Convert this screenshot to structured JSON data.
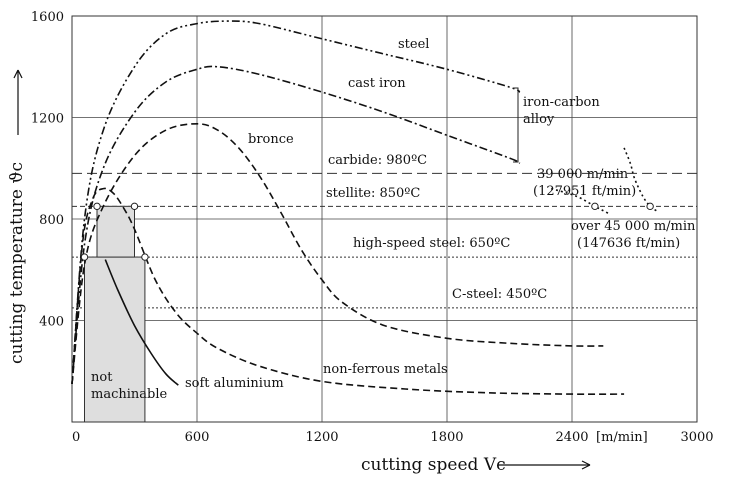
{
  "chart_data": {
    "type": "line",
    "xlabel": "cutting speed Vc",
    "x_unit_label": "[m/min]",
    "ylabel": "cutting temperature ϑc",
    "xlim": [
      0,
      3000
    ],
    "ylim": [
      0,
      1600
    ],
    "x_ticks": [
      0,
      600,
      1200,
      1800,
      2400,
      3000
    ],
    "x_tick_labels": [
      "0",
      "600",
      "1200",
      "1800",
      "2400",
      "3000"
    ],
    "y_ticks": [
      400,
      800,
      1200,
      1600
    ],
    "y_tick_labels": [
      "400",
      "800",
      "1200",
      "1600"
    ],
    "grid": true,
    "series": [
      {
        "name": "steel",
        "style": "dashdotdot",
        "x": [
          0,
          60,
          150,
          300,
          450,
          600,
          750,
          900,
          1200,
          1500,
          1800,
          2100,
          2150
        ],
        "y": [
          150,
          800,
          1150,
          1400,
          1530,
          1570,
          1580,
          1570,
          1510,
          1450,
          1390,
          1320,
          1300
        ]
      },
      {
        "name": "cast iron",
        "style": "dashdot",
        "x": [
          0,
          60,
          150,
          300,
          450,
          600,
          700,
          900,
          1200,
          1500,
          1800,
          2100,
          2150
        ],
        "y": [
          150,
          700,
          1000,
          1220,
          1340,
          1390,
          1400,
          1370,
          1300,
          1220,
          1130,
          1040,
          1020
        ]
      },
      {
        "name": "bronce",
        "style": "dashed",
        "x": [
          0,
          60,
          150,
          300,
          450,
          600,
          700,
          800,
          900,
          1000,
          1100,
          1200,
          1300,
          1500,
          1800,
          2100,
          2400,
          2550
        ],
        "y": [
          150,
          620,
          850,
          1050,
          1150,
          1175,
          1150,
          1080,
          970,
          830,
          680,
          560,
          470,
          380,
          330,
          310,
          300,
          300
        ]
      },
      {
        "name": "non-ferrous metals",
        "style": "dashed",
        "x": [
          0,
          50,
          100,
          150,
          200,
          250,
          300,
          400,
          500,
          600,
          700,
          900,
          1200,
          1600,
          2000,
          2400,
          2650
        ],
        "y": [
          150,
          700,
          880,
          920,
          900,
          840,
          760,
          560,
          430,
          350,
          290,
          220,
          160,
          130,
          115,
          110,
          110
        ]
      },
      {
        "name": "soft aluminium",
        "style": "solid",
        "x": [
          160,
          220,
          300,
          380,
          450,
          510
        ],
        "y": [
          640,
          520,
          380,
          270,
          190,
          145
        ]
      }
    ],
    "reference_lines": [
      {
        "label": "carbide: 980ºC",
        "y": 980,
        "style": "long-dash"
      },
      {
        "label": "stellite: 850ºC",
        "y": 850,
        "style": "short-dash"
      },
      {
        "label": "high-speed steel: 650ºC",
        "y": 650,
        "style": "dotted"
      },
      {
        "label": "C-steel: 450ºC",
        "y": 450,
        "style": "dotted"
      }
    ],
    "regions": [
      {
        "label_line1": "not",
        "label_line2": "machinable",
        "x": [
          60,
          350
        ],
        "y": [
          0,
          650
        ]
      },
      {
        "label": "",
        "x": [
          120,
          300
        ],
        "y": [
          650,
          850
        ]
      }
    ],
    "markers": [
      {
        "x": 60,
        "y": 650
      },
      {
        "x": 350,
        "y": 650
      },
      {
        "x": 120,
        "y": 850
      },
      {
        "x": 300,
        "y": 850
      },
      {
        "x": 2510,
        "y": 850
      },
      {
        "x": 2775,
        "y": 850
      }
    ],
    "high_speed_curves": [
      {
        "x": [
          2300,
          2420,
          2510,
          2580
        ],
        "y": [
          920,
          890,
          850,
          820
        ],
        "style": "dotted"
      },
      {
        "x": [
          2650,
          2680,
          2700,
          2740,
          2775,
          2810
        ],
        "y": [
          1080,
          1020,
          960,
          890,
          850,
          830
        ],
        "style": "dotted"
      }
    ],
    "annotations": {
      "steel": "steel",
      "cast_iron": "cast iron",
      "bronce": "bronce",
      "non_ferrous": "non-ferrous metals",
      "soft_aluminium": "soft aluminium",
      "alloy_line1": "iron-carbon",
      "alloy_line2": "alloy",
      "speed1_line1": "39 000 m/min",
      "speed1_line2": "(127951 ft/min)",
      "speed2_line1": "over 45 000 m/min",
      "speed2_line2": "(147636 ft/min)"
    }
  }
}
